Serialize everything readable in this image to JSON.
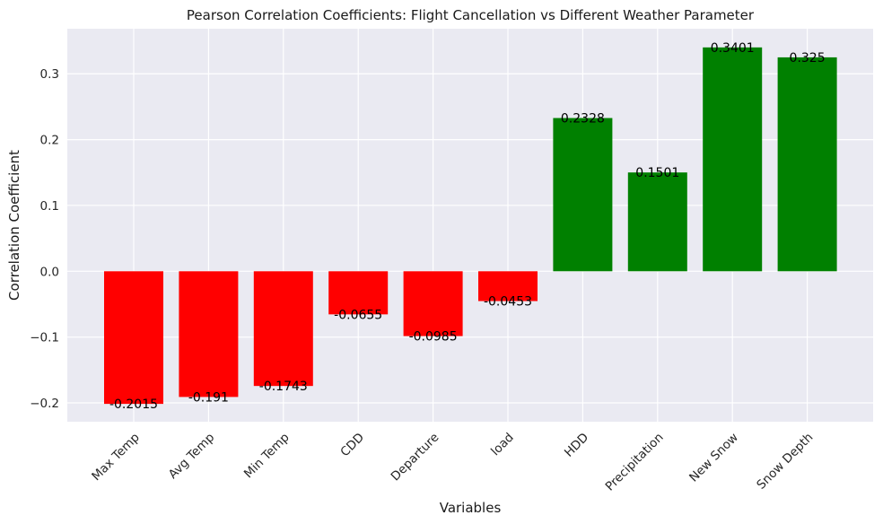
{
  "chart_data": {
    "type": "bar",
    "title": "Pearson Correlation Coefficients: Flight Cancellation vs Different Weather Parameter",
    "xlabel": "Variables",
    "ylabel": "Correlation Coefficient",
    "categories": [
      "Max Temp",
      "Avg Temp",
      "Min Temp",
      "CDD",
      "Departure",
      "load",
      "HDD",
      "Precipitation",
      "New Snow",
      "Snow Depth"
    ],
    "values": [
      -0.2015,
      -0.191,
      -0.1743,
      -0.0655,
      -0.0985,
      -0.0453,
      0.2328,
      0.1501,
      0.3401,
      0.325
    ],
    "value_labels": [
      "-0.2015",
      "-0.191",
      "-0.1743",
      "-0.0655",
      "-0.0985",
      "-0.0453",
      "0.2328",
      "0.1501",
      "0.3401",
      "0.325"
    ],
    "yticks": [
      -0.2,
      -0.1,
      0.0,
      0.1,
      0.2,
      0.3
    ],
    "ytick_labels": [
      "−0.2",
      "−0.1",
      "0.0",
      "0.1",
      "0.2",
      "0.3"
    ],
    "ylim": [
      -0.2286,
      0.3685
    ],
    "grid": true,
    "colors": {
      "positive": "#008000",
      "negative": "#ff0000",
      "plot_background": "#eaeaf2",
      "grid": "#ffffff"
    }
  }
}
